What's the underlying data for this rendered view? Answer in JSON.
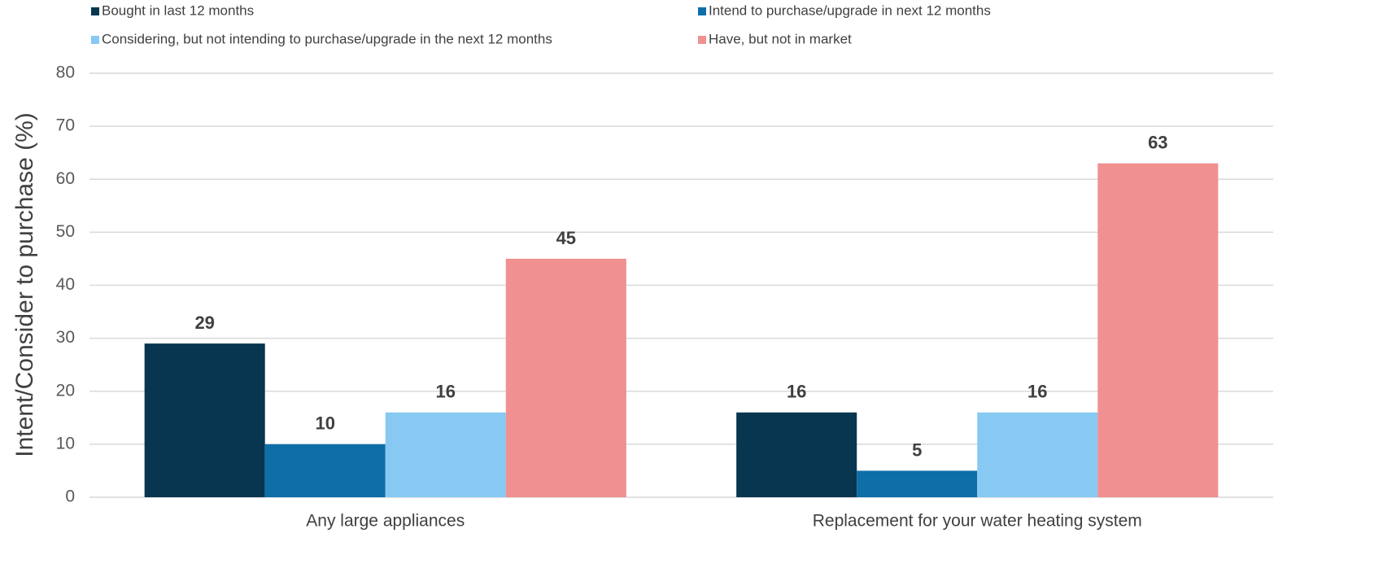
{
  "chart_data": {
    "type": "bar",
    "y_label": "Intent/Consider to purchase (%)",
    "categories": [
      "Any large appliances",
      "Replacement for your water heating system"
    ],
    "series": [
      {
        "name": "Bought in last 12 months",
        "color": "#08354f",
        "values": [
          29,
          16
        ]
      },
      {
        "name": "Intend to purchase/upgrade in next 12 months",
        "color": "#0d6ea8",
        "values": [
          10,
          5
        ]
      },
      {
        "name": "Considering, but not intending to purchase/upgrade in the next 12 months",
        "color": "#87c9f2",
        "values": [
          16,
          16
        ]
      },
      {
        "name": "Have, but not in market",
        "color": "#f09090",
        "values": [
          45,
          63
        ]
      }
    ],
    "ylim": [
      0,
      80
    ],
    "yticks": [
      0,
      10,
      20,
      30,
      40,
      50,
      60,
      70,
      80
    ],
    "grid": true,
    "legend": "top"
  }
}
